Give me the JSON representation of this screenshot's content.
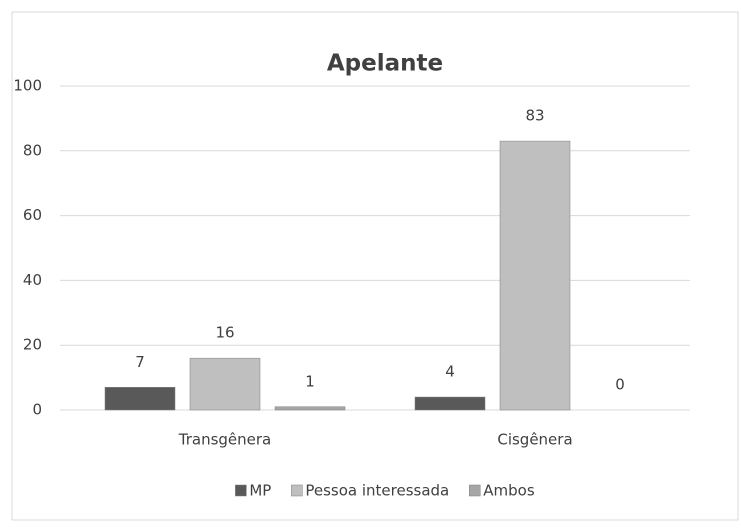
{
  "chart_data": {
    "type": "bar",
    "title": "Apelante",
    "categories": [
      "Transgênera",
      "Cisgênera"
    ],
    "series": [
      {
        "name": "MP",
        "color": "#595959",
        "values": [
          7,
          4
        ]
      },
      {
        "name": "Pessoa interessada",
        "color": "#bfbfbf",
        "values": [
          16,
          83
        ]
      },
      {
        "name": "Ambos",
        "color": "#a6a6a6",
        "values": [
          1,
          0
        ]
      }
    ],
    "ylim": [
      0,
      100
    ],
    "yticks": [
      0,
      20,
      40,
      60,
      80,
      100
    ],
    "grid": true,
    "legend": "bottom"
  }
}
